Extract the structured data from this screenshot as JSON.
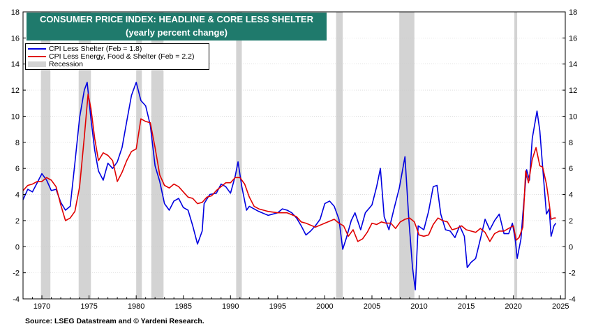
{
  "title": {
    "line1": "CONSUMER PRICE INDEX: HEADLINE & CORE LESS SHELTER",
    "line2": "(yearly percent change)"
  },
  "legend": {
    "items": [
      {
        "label": "CPI Less Shelter (Feb = 1.8)",
        "color": "#0000e0",
        "kind": "line"
      },
      {
        "label": "CPI Less Energy, Food & Shelter (Feb = 2.2)",
        "color": "#e00000",
        "kind": "line"
      },
      {
        "label": "Recession",
        "color": "#d3d3d3",
        "kind": "box"
      }
    ]
  },
  "source": "Source: LSEG Datastream and © Yardeni Research.",
  "chart_data": {
    "type": "line",
    "xlim": [
      1968,
      2025.5
    ],
    "ylim": [
      -4,
      18
    ],
    "x_ticks": [
      1970,
      1975,
      1980,
      1985,
      1990,
      1995,
      2000,
      2005,
      2010,
      2015,
      2020,
      2025
    ],
    "y_ticks": [
      -4,
      -2,
      0,
      2,
      4,
      6,
      8,
      10,
      12,
      14,
      16,
      18
    ],
    "recessions": [
      [
        1969.9,
        1970.9
      ],
      [
        1973.9,
        1975.2
      ],
      [
        1980.0,
        1980.6
      ],
      [
        1981.6,
        1982.9
      ],
      [
        1990.6,
        1991.2
      ],
      [
        2001.2,
        2001.9
      ],
      [
        2007.9,
        2009.5
      ],
      [
        2020.1,
        2020.4
      ]
    ],
    "series": [
      {
        "name": "CPI Less Shelter (Feb = 1.8)",
        "color": "#0000e0",
        "points": [
          [
            1968.0,
            3.6
          ],
          [
            1968.5,
            4.4
          ],
          [
            1969.0,
            4.2
          ],
          [
            1969.5,
            4.9
          ],
          [
            1970.0,
            5.6
          ],
          [
            1970.5,
            5.1
          ],
          [
            1971.0,
            4.3
          ],
          [
            1971.5,
            4.4
          ],
          [
            1972.0,
            3.4
          ],
          [
            1972.5,
            2.8
          ],
          [
            1973.0,
            3.1
          ],
          [
            1973.5,
            6.4
          ],
          [
            1974.0,
            9.9
          ],
          [
            1974.5,
            12.0
          ],
          [
            1974.8,
            12.6
          ],
          [
            1975.2,
            9.8
          ],
          [
            1975.6,
            7.4
          ],
          [
            1976.0,
            5.8
          ],
          [
            1976.5,
            5.1
          ],
          [
            1977.0,
            6.4
          ],
          [
            1977.5,
            6.0
          ],
          [
            1978.0,
            6.5
          ],
          [
            1978.5,
            7.6
          ],
          [
            1979.0,
            9.6
          ],
          [
            1979.5,
            11.6
          ],
          [
            1980.0,
            12.6
          ],
          [
            1980.5,
            11.2
          ],
          [
            1981.0,
            10.8
          ],
          [
            1981.5,
            9.3
          ],
          [
            1982.0,
            6.2
          ],
          [
            1982.5,
            5.0
          ],
          [
            1983.0,
            3.3
          ],
          [
            1983.5,
            2.8
          ],
          [
            1984.0,
            3.5
          ],
          [
            1984.5,
            3.7
          ],
          [
            1985.0,
            3.0
          ],
          [
            1985.5,
            2.8
          ],
          [
            1986.0,
            1.6
          ],
          [
            1986.5,
            0.2
          ],
          [
            1987.0,
            1.2
          ],
          [
            1987.2,
            3.3
          ],
          [
            1987.8,
            4.0
          ],
          [
            1988.5,
            4.1
          ],
          [
            1989.0,
            4.8
          ],
          [
            1989.5,
            4.6
          ],
          [
            1990.0,
            4.1
          ],
          [
            1990.5,
            5.4
          ],
          [
            1990.8,
            6.5
          ],
          [
            1991.2,
            4.6
          ],
          [
            1991.7,
            2.8
          ],
          [
            1992.0,
            3.1
          ],
          [
            1993.0,
            2.7
          ],
          [
            1994.0,
            2.4
          ],
          [
            1995.0,
            2.6
          ],
          [
            1995.5,
            2.9
          ],
          [
            1996.0,
            2.8
          ],
          [
            1996.5,
            2.6
          ],
          [
            1997.0,
            2.2
          ],
          [
            1997.5,
            1.6
          ],
          [
            1998.0,
            0.9
          ],
          [
            1998.5,
            1.2
          ],
          [
            1999.0,
            1.6
          ],
          [
            1999.5,
            2.1
          ],
          [
            2000.0,
            3.3
          ],
          [
            2000.5,
            3.5
          ],
          [
            2001.0,
            3.1
          ],
          [
            2001.5,
            2.1
          ],
          [
            2001.9,
            -0.2
          ],
          [
            2002.3,
            0.7
          ],
          [
            2002.8,
            2.0
          ],
          [
            2003.2,
            2.6
          ],
          [
            2003.8,
            1.3
          ],
          [
            2004.3,
            2.6
          ],
          [
            2005.0,
            3.2
          ],
          [
            2005.5,
            4.6
          ],
          [
            2005.9,
            6.0
          ],
          [
            2006.3,
            2.3
          ],
          [
            2006.8,
            1.3
          ],
          [
            2007.3,
            2.8
          ],
          [
            2007.9,
            4.5
          ],
          [
            2008.5,
            6.9
          ],
          [
            2008.9,
            2.2
          ],
          [
            2009.3,
            -1.6
          ],
          [
            2009.6,
            -3.3
          ],
          [
            2009.9,
            1.6
          ],
          [
            2010.5,
            1.3
          ],
          [
            2011.0,
            2.7
          ],
          [
            2011.5,
            4.6
          ],
          [
            2011.9,
            4.7
          ],
          [
            2012.3,
            2.5
          ],
          [
            2012.8,
            1.3
          ],
          [
            2013.3,
            1.2
          ],
          [
            2013.8,
            0.7
          ],
          [
            2014.3,
            1.6
          ],
          [
            2014.8,
            0.8
          ],
          [
            2015.1,
            -1.6
          ],
          [
            2015.5,
            -1.2
          ],
          [
            2016.0,
            -0.9
          ],
          [
            2016.5,
            0.6
          ],
          [
            2017.0,
            2.1
          ],
          [
            2017.5,
            1.3
          ],
          [
            2018.0,
            2.0
          ],
          [
            2018.5,
            2.5
          ],
          [
            2019.0,
            1.0
          ],
          [
            2019.5,
            1.0
          ],
          [
            2019.9,
            1.8
          ],
          [
            2020.2,
            0.5
          ],
          [
            2020.4,
            -0.9
          ],
          [
            2020.8,
            0.6
          ],
          [
            2021.0,
            2.5
          ],
          [
            2021.4,
            5.9
          ],
          [
            2021.7,
            5.1
          ],
          [
            2022.0,
            8.3
          ],
          [
            2022.5,
            10.4
          ],
          [
            2022.8,
            8.9
          ],
          [
            2023.1,
            6.1
          ],
          [
            2023.5,
            2.5
          ],
          [
            2023.8,
            2.9
          ],
          [
            2024.0,
            0.8
          ],
          [
            2024.3,
            1.6
          ],
          [
            2024.5,
            1.8
          ]
        ]
      },
      {
        "name": "CPI Less Energy, Food & Shelter (Feb = 2.2)",
        "color": "#e00000",
        "points": [
          [
            1968.0,
            4.3
          ],
          [
            1968.5,
            4.7
          ],
          [
            1969.0,
            4.8
          ],
          [
            1969.5,
            5.0
          ],
          [
            1970.0,
            5.0
          ],
          [
            1970.5,
            5.3
          ],
          [
            1971.0,
            5.1
          ],
          [
            1971.5,
            4.6
          ],
          [
            1972.0,
            3.2
          ],
          [
            1972.5,
            2.0
          ],
          [
            1973.0,
            2.2
          ],
          [
            1973.5,
            2.7
          ],
          [
            1974.0,
            4.6
          ],
          [
            1974.5,
            8.4
          ],
          [
            1974.9,
            11.7
          ],
          [
            1975.2,
            10.6
          ],
          [
            1975.6,
            8.3
          ],
          [
            1976.0,
            6.6
          ],
          [
            1976.5,
            7.2
          ],
          [
            1977.0,
            7.0
          ],
          [
            1977.5,
            6.6
          ],
          [
            1978.0,
            5.0
          ],
          [
            1978.5,
            5.7
          ],
          [
            1979.0,
            6.6
          ],
          [
            1979.5,
            7.3
          ],
          [
            1980.0,
            7.5
          ],
          [
            1980.5,
            9.8
          ],
          [
            1981.0,
            9.6
          ],
          [
            1981.5,
            9.5
          ],
          [
            1982.0,
            7.6
          ],
          [
            1982.5,
            5.5
          ],
          [
            1983.0,
            4.7
          ],
          [
            1983.5,
            4.5
          ],
          [
            1984.0,
            4.8
          ],
          [
            1984.5,
            4.6
          ],
          [
            1985.0,
            4.2
          ],
          [
            1985.5,
            3.8
          ],
          [
            1986.0,
            3.7
          ],
          [
            1986.5,
            3.3
          ],
          [
            1987.0,
            3.4
          ],
          [
            1987.5,
            3.8
          ],
          [
            1988.0,
            3.9
          ],
          [
            1988.5,
            4.3
          ],
          [
            1989.0,
            4.6
          ],
          [
            1989.5,
            4.9
          ],
          [
            1990.0,
            4.9
          ],
          [
            1990.5,
            5.3
          ],
          [
            1991.0,
            5.3
          ],
          [
            1991.5,
            4.8
          ],
          [
            1992.0,
            3.8
          ],
          [
            1992.5,
            3.1
          ],
          [
            1993.0,
            2.9
          ],
          [
            1994.0,
            2.7
          ],
          [
            1995.0,
            2.6
          ],
          [
            1996.0,
            2.6
          ],
          [
            1997.0,
            2.3
          ],
          [
            1997.5,
            1.9
          ],
          [
            1998.0,
            1.8
          ],
          [
            1999.0,
            1.5
          ],
          [
            2000.0,
            1.8
          ],
          [
            2001.0,
            2.1
          ],
          [
            2001.5,
            1.8
          ],
          [
            2002.0,
            1.6
          ],
          [
            2002.5,
            0.8
          ],
          [
            2003.0,
            1.3
          ],
          [
            2003.5,
            0.4
          ],
          [
            2004.0,
            0.6
          ],
          [
            2004.5,
            1.1
          ],
          [
            2005.0,
            1.8
          ],
          [
            2005.5,
            1.7
          ],
          [
            2006.0,
            1.9
          ],
          [
            2006.5,
            1.8
          ],
          [
            2007.0,
            1.8
          ],
          [
            2007.5,
            1.4
          ],
          [
            2008.0,
            1.9
          ],
          [
            2008.5,
            2.1
          ],
          [
            2009.0,
            2.2
          ],
          [
            2009.5,
            1.9
          ],
          [
            2010.0,
            0.9
          ],
          [
            2010.5,
            0.8
          ],
          [
            2011.0,
            0.9
          ],
          [
            2011.5,
            1.7
          ],
          [
            2012.0,
            2.2
          ],
          [
            2012.5,
            2.0
          ],
          [
            2013.0,
            1.9
          ],
          [
            2013.5,
            1.3
          ],
          [
            2014.0,
            1.4
          ],
          [
            2014.5,
            1.6
          ],
          [
            2015.0,
            1.3
          ],
          [
            2015.5,
            1.2
          ],
          [
            2016.0,
            1.1
          ],
          [
            2016.5,
            1.4
          ],
          [
            2017.0,
            1.1
          ],
          [
            2017.5,
            0.4
          ],
          [
            2018.0,
            1.0
          ],
          [
            2018.5,
            1.2
          ],
          [
            2019.0,
            1.2
          ],
          [
            2019.5,
            1.4
          ],
          [
            2020.0,
            1.6
          ],
          [
            2020.3,
            0.5
          ],
          [
            2020.6,
            0.7
          ],
          [
            2021.0,
            1.5
          ],
          [
            2021.3,
            5.8
          ],
          [
            2021.6,
            4.9
          ],
          [
            2022.0,
            6.7
          ],
          [
            2022.4,
            7.6
          ],
          [
            2022.8,
            6.2
          ],
          [
            2023.1,
            6.1
          ],
          [
            2023.5,
            4.8
          ],
          [
            2023.8,
            3.3
          ],
          [
            2024.0,
            2.1
          ],
          [
            2024.3,
            2.2
          ],
          [
            2024.5,
            2.2
          ]
        ]
      }
    ]
  }
}
